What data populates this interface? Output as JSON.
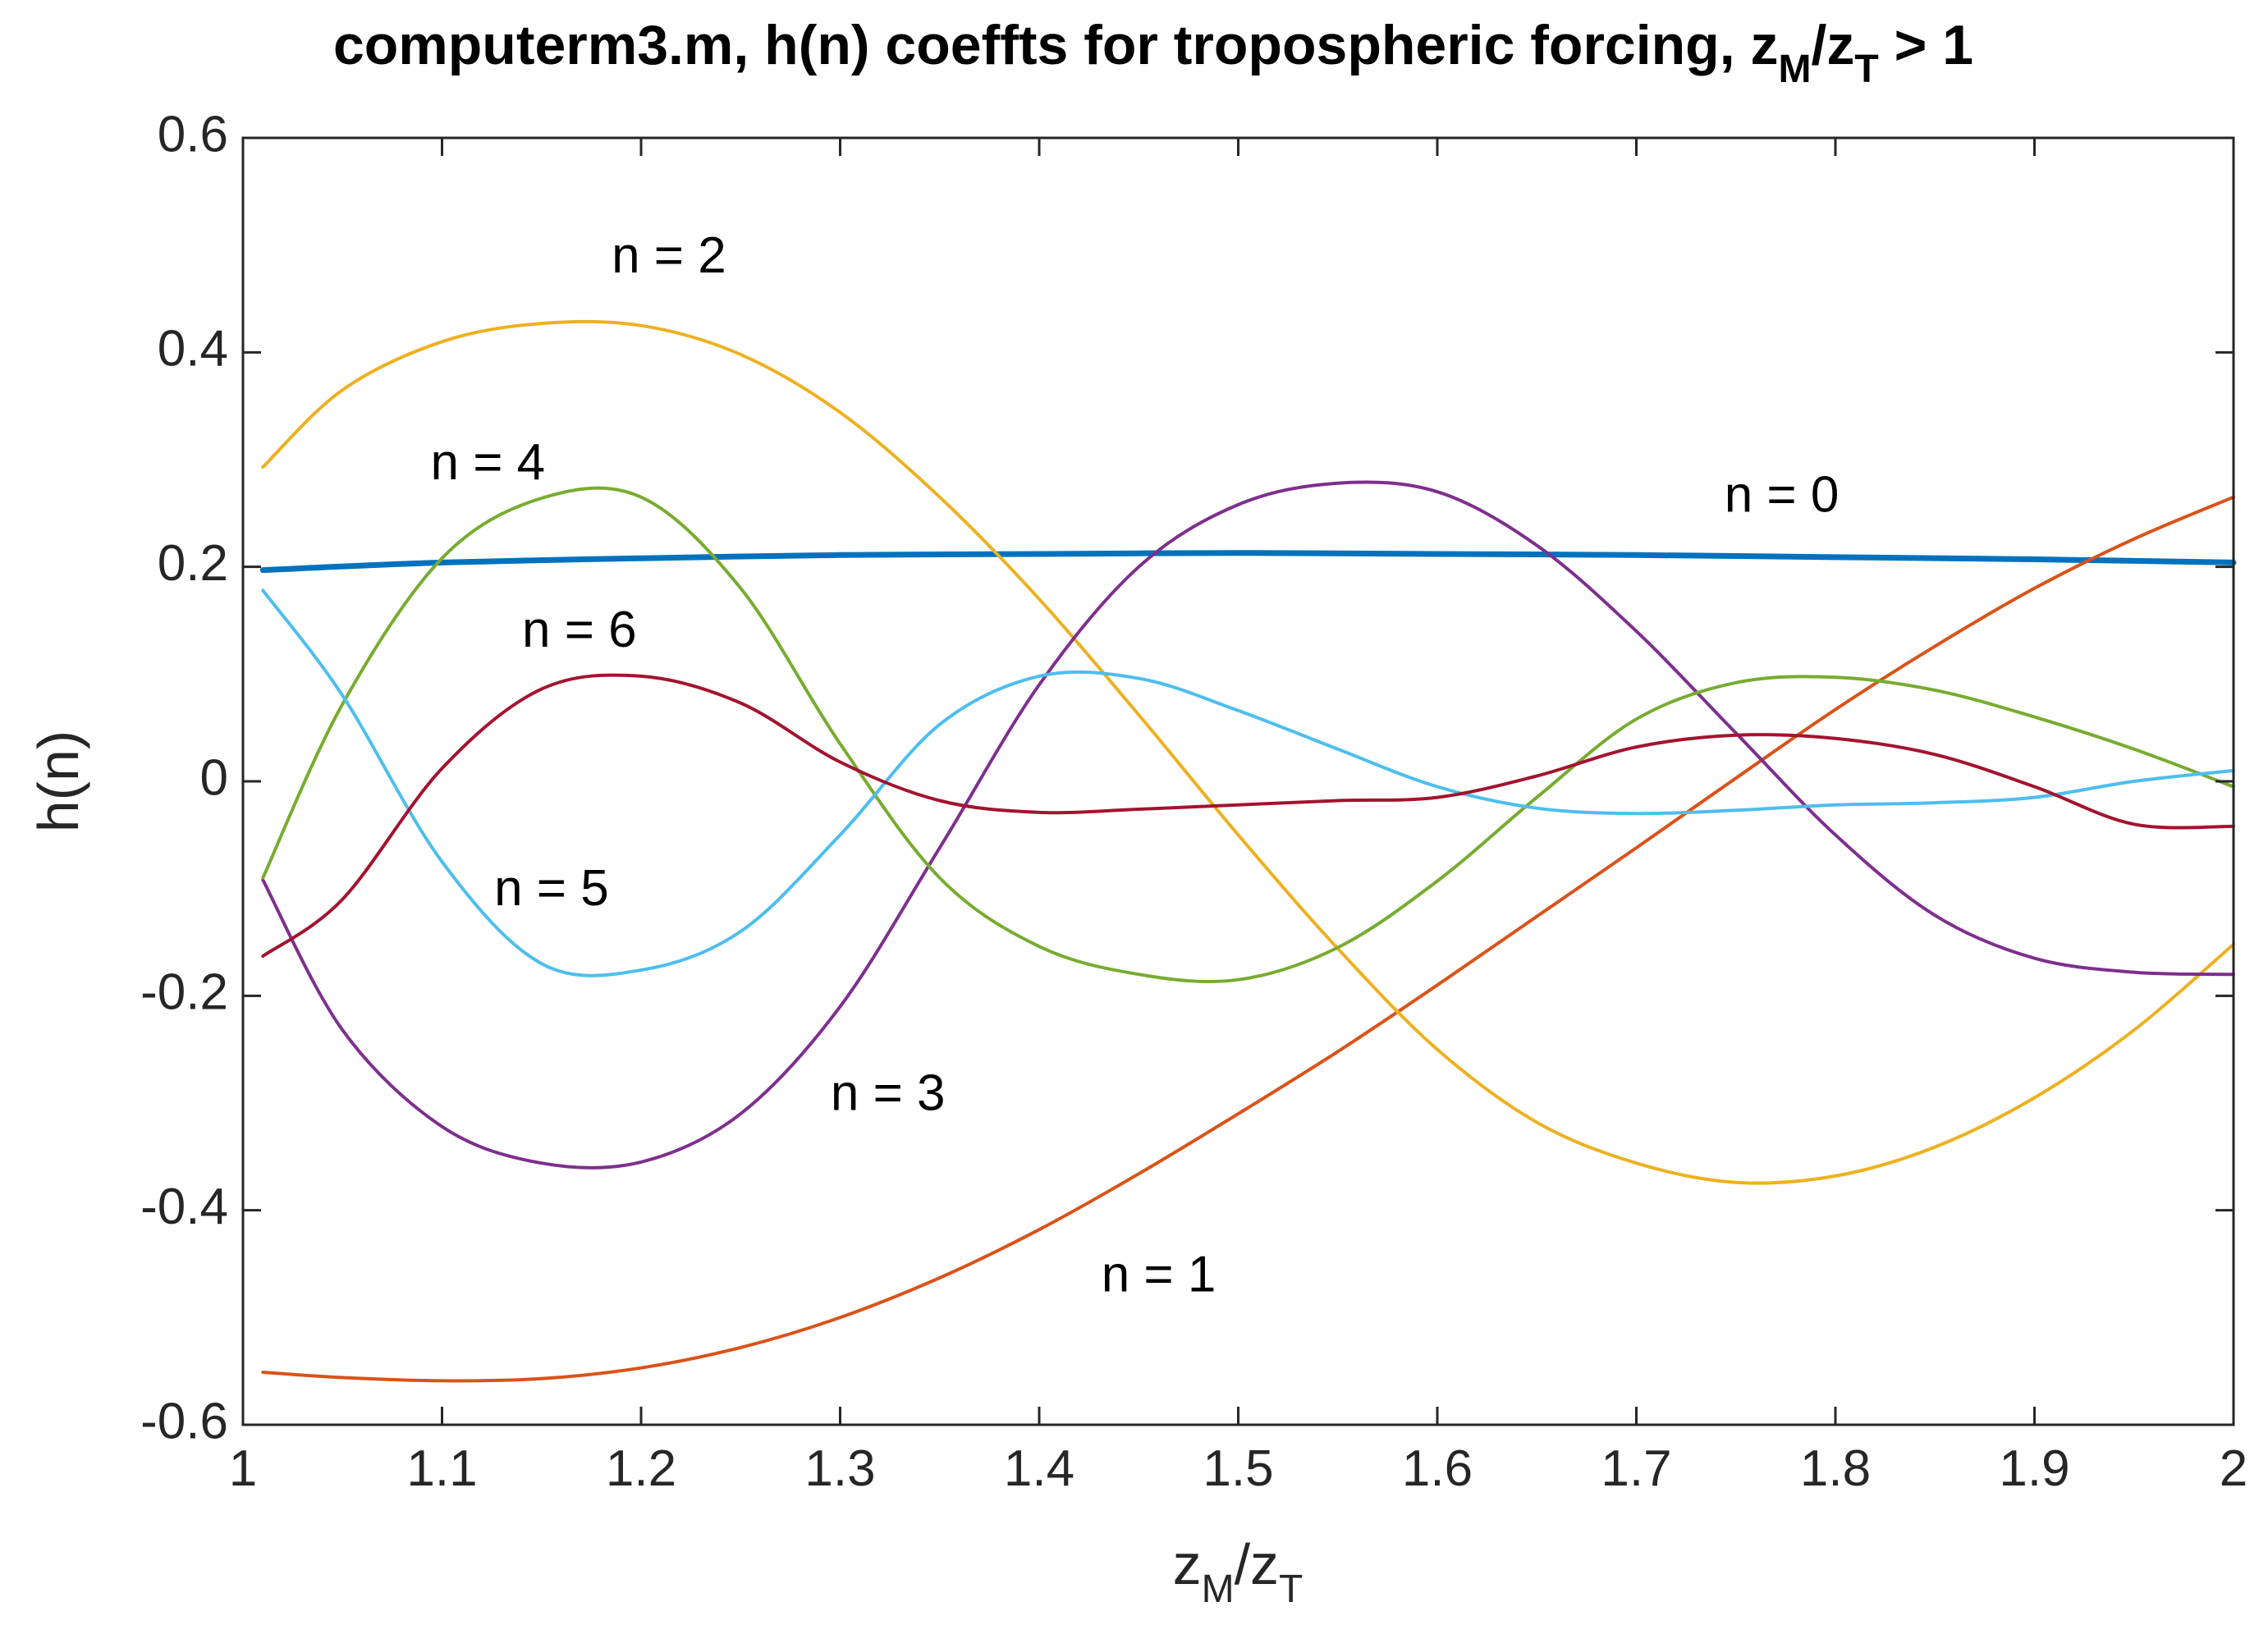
{
  "chart_data": {
    "type": "line",
    "title": {
      "prefix": "computerm3.m, h(n) coeffts for tropospheric forcing, z",
      "sub1": "M",
      "mid": "/z",
      "sub2": "T",
      "suffix": " > 1"
    },
    "xlabel": {
      "a": "z",
      "a_sub": "M",
      "b": "/z",
      "b_sub": "T"
    },
    "ylabel": "h(n)",
    "xlim": [
      1,
      2
    ],
    "ylim": [
      -0.6,
      0.6
    ],
    "xticks": [
      1,
      1.1,
      1.2,
      1.3,
      1.4,
      1.5,
      1.6,
      1.7,
      1.8,
      1.9,
      2
    ],
    "xtick_labels": [
      "1",
      "1.1",
      "1.2",
      "1.3",
      "1.4",
      "1.5",
      "1.6",
      "1.7",
      "1.8",
      "1.9",
      "2"
    ],
    "yticks": [
      -0.6,
      -0.4,
      -0.2,
      0,
      0.2,
      0.4,
      0.6
    ],
    "ytick_labels": [
      "-0.6",
      "-0.4",
      "-0.2",
      "0",
      "0.2",
      "0.4",
      "0.6"
    ],
    "grid": false,
    "series": [
      {
        "name": "n = 0",
        "color": "#0072BD",
        "x": [
          1.01,
          1.1,
          1.2,
          1.3,
          1.4,
          1.5,
          1.6,
          1.7,
          1.8,
          1.9,
          2.0
        ],
        "y": [
          0.197,
          0.204,
          0.208,
          0.211,
          0.212,
          0.213,
          0.212,
          0.211,
          0.209,
          0.207,
          0.204
        ]
      },
      {
        "name": "n = 1",
        "color": "#D95319",
        "x": [
          1.01,
          1.05,
          1.1,
          1.15,
          1.2,
          1.25,
          1.3,
          1.35,
          1.4,
          1.45,
          1.5,
          1.55,
          1.6,
          1.65,
          1.7,
          1.75,
          1.8,
          1.85,
          1.9,
          1.95,
          2.0
        ],
        "y": [
          -0.551,
          -0.556,
          -0.559,
          -0.557,
          -0.547,
          -0.528,
          -0.5,
          -0.463,
          -0.418,
          -0.366,
          -0.31,
          -0.252,
          -0.19,
          -0.126,
          -0.062,
          0.003,
          0.067,
          0.126,
          0.18,
          0.226,
          0.265
        ]
      },
      {
        "name": "n = 2",
        "color": "#EDB120",
        "x": [
          1.01,
          1.05,
          1.1,
          1.15,
          1.2,
          1.25,
          1.3,
          1.35,
          1.4,
          1.45,
          1.5,
          1.55,
          1.6,
          1.65,
          1.7,
          1.75,
          1.8,
          1.85,
          1.9,
          1.95,
          2.0
        ],
        "y": [
          0.293,
          0.365,
          0.41,
          0.427,
          0.425,
          0.398,
          0.344,
          0.265,
          0.17,
          0.062,
          -0.05,
          -0.156,
          -0.25,
          -0.318,
          -0.356,
          -0.374,
          -0.368,
          -0.341,
          -0.295,
          -0.232,
          -0.152
        ]
      },
      {
        "name": "n = 3",
        "color": "#7E2F8E",
        "x": [
          1.01,
          1.05,
          1.1,
          1.15,
          1.2,
          1.25,
          1.3,
          1.35,
          1.4,
          1.45,
          1.5,
          1.55,
          1.6,
          1.65,
          1.7,
          1.75,
          1.8,
          1.85,
          1.9,
          1.95,
          2.0
        ],
        "y": [
          -0.092,
          -0.232,
          -0.322,
          -0.356,
          -0.355,
          -0.31,
          -0.21,
          -0.062,
          0.09,
          0.2,
          0.258,
          0.278,
          0.27,
          0.22,
          0.14,
          0.045,
          -0.05,
          -0.125,
          -0.165,
          -0.178,
          -0.18
        ]
      },
      {
        "name": "n = 4",
        "color": "#77AC30",
        "x": [
          1.01,
          1.05,
          1.1,
          1.15,
          1.2,
          1.25,
          1.3,
          1.35,
          1.4,
          1.45,
          1.5,
          1.55,
          1.6,
          1.65,
          1.7,
          1.75,
          1.8,
          1.85,
          1.9,
          1.95,
          2.0
        ],
        "y": [
          -0.09,
          0.072,
          0.208,
          0.264,
          0.265,
          0.18,
          0.035,
          -0.09,
          -0.154,
          -0.18,
          -0.185,
          -0.155,
          -0.093,
          -0.015,
          0.058,
          0.092,
          0.097,
          0.085,
          0.06,
          0.03,
          -0.005
        ]
      },
      {
        "name": "n = 5",
        "color": "#4DBEEE",
        "x": [
          1.01,
          1.05,
          1.1,
          1.15,
          1.2,
          1.25,
          1.3,
          1.35,
          1.4,
          1.45,
          1.5,
          1.55,
          1.6,
          1.65,
          1.7,
          1.75,
          1.8,
          1.85,
          1.9,
          1.95,
          2.0
        ],
        "y": [
          0.178,
          0.08,
          -0.075,
          -0.17,
          -0.176,
          -0.14,
          -0.05,
          0.053,
          0.098,
          0.096,
          0.066,
          0.03,
          -0.005,
          -0.025,
          -0.03,
          -0.027,
          -0.022,
          -0.02,
          -0.015,
          0.0,
          0.01
        ]
      },
      {
        "name": "n = 6",
        "color": "#A2142F",
        "x": [
          1.01,
          1.05,
          1.1,
          1.15,
          1.2,
          1.25,
          1.3,
          1.35,
          1.4,
          1.45,
          1.5,
          1.55,
          1.6,
          1.65,
          1.7,
          1.75,
          1.8,
          1.85,
          1.9,
          1.95,
          2.0
        ],
        "y": [
          -0.163,
          -0.11,
          0.012,
          0.086,
          0.098,
          0.073,
          0.018,
          -0.018,
          -0.029,
          -0.026,
          -0.022,
          -0.018,
          -0.015,
          0.005,
          0.032,
          0.043,
          0.04,
          0.025,
          -0.005,
          -0.04,
          -0.042
        ]
      }
    ],
    "annotations": [
      {
        "text": "n = 2",
        "x": 1.214,
        "y": 0.487
      },
      {
        "text": "n = 4",
        "x": 1.123,
        "y": 0.294
      },
      {
        "text": "n = 0",
        "x": 1.773,
        "y": 0.264
      },
      {
        "text": "n = 6",
        "x": 1.169,
        "y": 0.138
      },
      {
        "text": "n = 5",
        "x": 1.155,
        "y": -0.103
      },
      {
        "text": "n = 3",
        "x": 1.324,
        "y": -0.294
      },
      {
        "text": "n = 1",
        "x": 1.46,
        "y": -0.463
      }
    ]
  }
}
